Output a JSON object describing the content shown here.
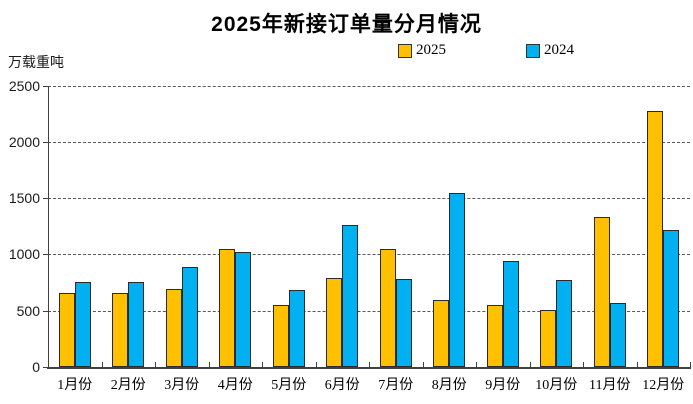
{
  "title": "2025年新接订单量分月情况",
  "unit_label": "万载重吨",
  "chart_data": {
    "type": "bar",
    "categories": [
      "1月份",
      "2月份",
      "3月份",
      "4月份",
      "5月份",
      "6月份",
      "7月份",
      "8月份",
      "9月份",
      "10月份",
      "11月份",
      "12月份"
    ],
    "series": [
      {
        "name": "2025",
        "color": "#FFC000",
        "values": [
          660,
          660,
          690,
          1050,
          555,
          790,
          1050,
          595,
          555,
          505,
          1330,
          2275
        ]
      },
      {
        "name": "2024",
        "color": "#00B0F0",
        "values": [
          755,
          755,
          885,
          1020,
          685,
          1265,
          780,
          1545,
          940,
          775,
          565,
          1220
        ]
      }
    ],
    "ylabel": "万载重吨",
    "ylim": [
      0,
      2500
    ],
    "yticks": [
      0,
      500,
      1000,
      1500,
      2000,
      2500
    ],
    "grid": "horizontal-dashed",
    "legend_position": "top",
    "bar_border_color": "#2b2b2b",
    "gridline_color": "#595959",
    "axis_color": "#404040"
  }
}
